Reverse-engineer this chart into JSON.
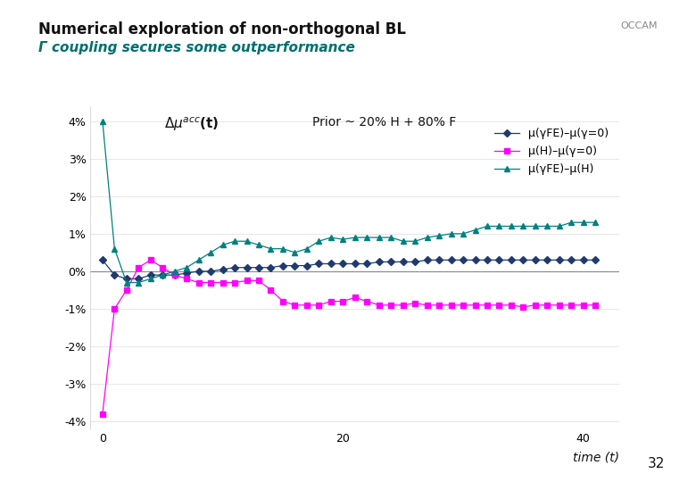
{
  "title_line1": "Numerical exploration of non-orthogonal BL",
  "title_line2": "Γ coupling secures some outperformance",
  "ylabel_label": "Δμ",
  "ylabel_sup": "acc",
  "ylabel_rest": "(t)",
  "xlabel": "time (t)",
  "prior_text": "Prior ~ 20% H + 80% F",
  "page_number": "32",
  "xlim": [
    -1,
    43
  ],
  "ylim": [
    -0.042,
    0.044
  ],
  "yticks": [
    -0.04,
    -0.03,
    -0.02,
    -0.01,
    0.0,
    0.01,
    0.02,
    0.03,
    0.04
  ],
  "ytick_labels": [
    "-4%",
    "-3%",
    "-2%",
    "-1%",
    "0%",
    "1%",
    "2%",
    "3%",
    "4%"
  ],
  "xticks": [
    0,
    20,
    40
  ],
  "background_color": "#ffffff",
  "line1_color": "#1F3A6E",
  "line2_color": "#FF00FF",
  "line3_color": "#008080",
  "legend_labels": [
    "μ(γFE)–μ(γ=0)",
    "μ(H)–μ(γ=0)",
    "μ(γFE)–μ(H)"
  ],
  "series1_x": [
    0,
    1,
    2,
    3,
    4,
    5,
    6,
    7,
    8,
    9,
    10,
    11,
    12,
    13,
    14,
    15,
    16,
    17,
    18,
    19,
    20,
    21,
    22,
    23,
    24,
    25,
    26,
    27,
    28,
    29,
    30,
    31,
    32,
    33,
    34,
    35,
    36,
    37,
    38,
    39,
    40,
    41
  ],
  "series1_y": [
    0.003,
    -0.001,
    -0.002,
    -0.002,
    -0.001,
    -0.001,
    -0.001,
    -0.0005,
    0.0,
    0.0,
    0.0005,
    0.001,
    0.001,
    0.001,
    0.001,
    0.0015,
    0.0015,
    0.0015,
    0.002,
    0.002,
    0.002,
    0.002,
    0.002,
    0.0025,
    0.0025,
    0.0025,
    0.0025,
    0.003,
    0.003,
    0.003,
    0.003,
    0.003,
    0.003,
    0.003,
    0.003,
    0.003,
    0.003,
    0.003,
    0.003,
    0.003,
    0.003,
    0.003
  ],
  "series2_x": [
    0,
    1,
    2,
    3,
    4,
    5,
    6,
    7,
    8,
    9,
    10,
    11,
    12,
    13,
    14,
    15,
    16,
    17,
    18,
    19,
    20,
    21,
    22,
    23,
    24,
    25,
    26,
    27,
    28,
    29,
    30,
    31,
    32,
    33,
    34,
    35,
    36,
    37,
    38,
    39,
    40,
    41
  ],
  "series2_y": [
    -0.038,
    -0.01,
    -0.005,
    0.001,
    0.003,
    0.001,
    -0.001,
    -0.002,
    -0.003,
    -0.003,
    -0.003,
    -0.003,
    -0.0025,
    -0.0025,
    -0.005,
    -0.008,
    -0.009,
    -0.009,
    -0.009,
    -0.008,
    -0.008,
    -0.007,
    -0.008,
    -0.009,
    -0.009,
    -0.009,
    -0.0085,
    -0.009,
    -0.009,
    -0.009,
    -0.009,
    -0.009,
    -0.009,
    -0.009,
    -0.009,
    -0.0095,
    -0.009,
    -0.009,
    -0.009,
    -0.009,
    -0.009,
    -0.009
  ],
  "series3_x": [
    0,
    1,
    2,
    3,
    4,
    5,
    6,
    7,
    8,
    9,
    10,
    11,
    12,
    13,
    14,
    15,
    16,
    17,
    18,
    19,
    20,
    21,
    22,
    23,
    24,
    25,
    26,
    27,
    28,
    29,
    30,
    31,
    32,
    33,
    34,
    35,
    36,
    37,
    38,
    39,
    40,
    41
  ],
  "series3_y": [
    0.04,
    0.006,
    -0.003,
    -0.003,
    -0.002,
    -0.001,
    0.0,
    0.001,
    0.003,
    0.005,
    0.007,
    0.008,
    0.008,
    0.007,
    0.006,
    0.006,
    0.005,
    0.006,
    0.008,
    0.009,
    0.0085,
    0.009,
    0.009,
    0.009,
    0.009,
    0.008,
    0.008,
    0.009,
    0.0095,
    0.01,
    0.01,
    0.011,
    0.012,
    0.012,
    0.012,
    0.012,
    0.012,
    0.012,
    0.012,
    0.013,
    0.013,
    0.013
  ]
}
